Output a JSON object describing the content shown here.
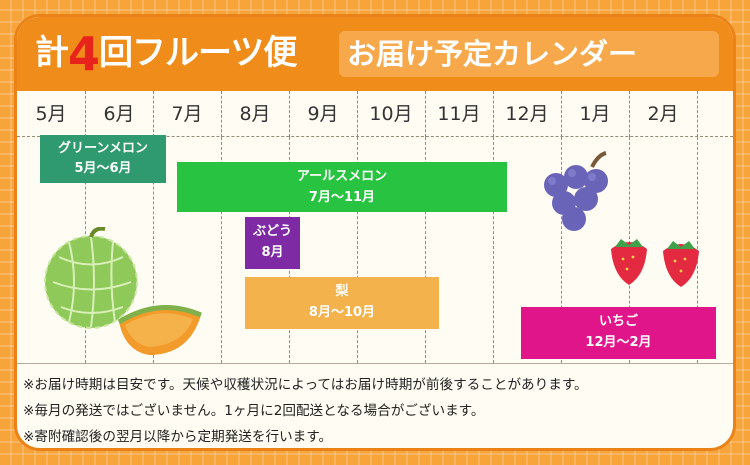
{
  "title": {
    "prefix": "計",
    "number": "4",
    "suffix": "回フルーツ便",
    "subtitle": "お届け予定カレンダー"
  },
  "months": [
    "5月",
    "6月",
    "7月",
    "8月",
    "9月",
    "10月",
    "11月",
    "12月",
    "1月",
    "2月"
  ],
  "bars": {
    "green_melon": {
      "name": "グリーンメロン",
      "period": "5月～6月",
      "color": "#2f9a6f"
    },
    "arls_melon": {
      "name": "アールスメロン",
      "period": "7月～11月",
      "color": "#28c441"
    },
    "grape": {
      "name": "ぶどう",
      "period": "8月",
      "color": "#7d2aa4"
    },
    "pear": {
      "name": "梨",
      "period": "8月～10月",
      "color": "#f3b24c"
    },
    "strawberry": {
      "name": "いちご",
      "period": "12月～2月",
      "color": "#e0158a"
    }
  },
  "notes": [
    "※お届け時期は目安です。天候や収穫状況によってはお届け時期が前後することがあります。",
    "※毎月の発送ではございません。1ヶ月に2回配送となる場合がございます。",
    "※寄附確認後の翌月以降から定期発送を行います。"
  ],
  "colors": {
    "frame": "#f7a43a",
    "header": "#f08c1a",
    "title_number": "#e8231b"
  }
}
